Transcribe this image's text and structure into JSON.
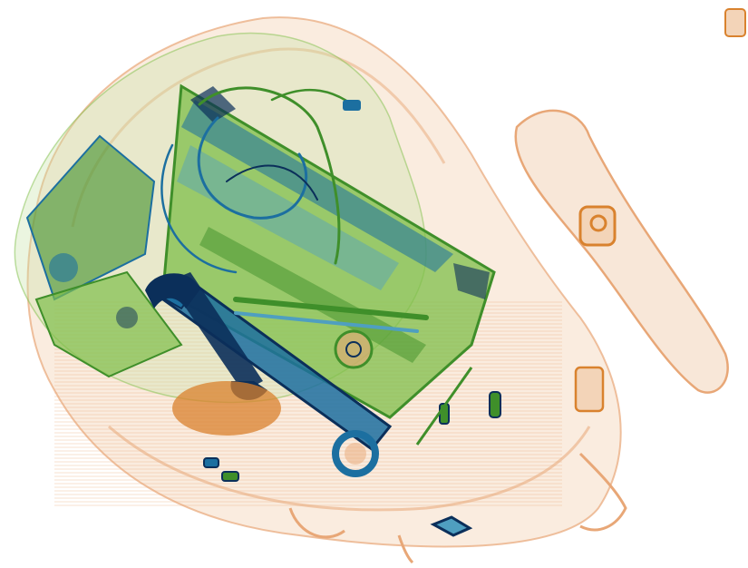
{
  "scan": {
    "palette": {
      "background": "#ffffff",
      "organic_light": "#f3d4b8",
      "organic_mid": "#e8a777",
      "organic_dark": "#d9822e",
      "mixed_light": "#c7e3a6",
      "mixed_mid": "#7fbf4a",
      "mixed_dark": "#3f8f2a",
      "metal_light": "#4f9fc0",
      "metal_mid": "#1c6fa0",
      "metal_dark": "#0b2f5a"
    },
    "objects": [
      {
        "name": "backpack-outline",
        "kind": "bag"
      },
      {
        "name": "backpack-strap",
        "kind": "strap"
      },
      {
        "name": "laptop",
        "kind": "electronics"
      },
      {
        "name": "cables",
        "kind": "wires"
      },
      {
        "name": "wrench-large",
        "kind": "tool"
      },
      {
        "name": "wrench-small",
        "kind": "tool"
      },
      {
        "name": "zipper-pulls",
        "kind": "hardware"
      }
    ]
  }
}
